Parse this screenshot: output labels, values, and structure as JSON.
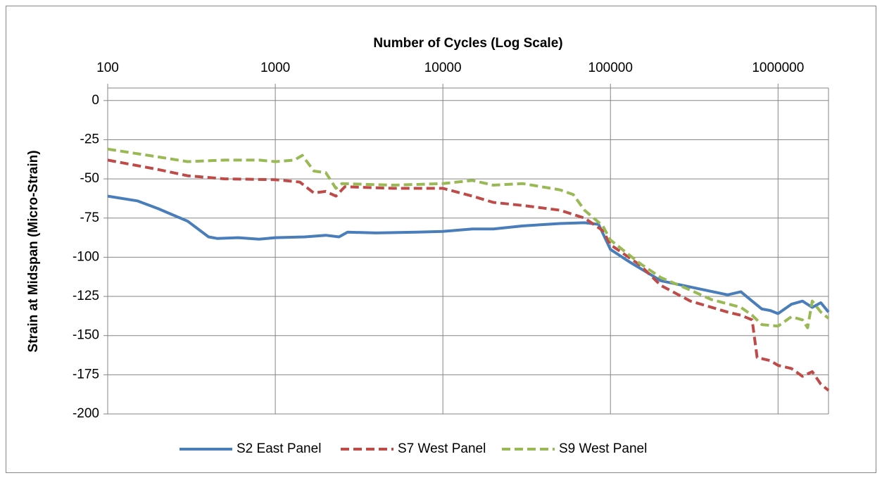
{
  "chart_data": {
    "type": "line",
    "x_label": "Number of Cycles (Log Scale)",
    "y_label": "Strain at Midspan (Micro-Strain)",
    "x_log": true,
    "xlim": [
      100,
      2000000
    ],
    "xticks": [
      100,
      1000,
      10000,
      100000,
      1000000
    ],
    "ylim": [
      -200,
      8
    ],
    "yticks": [
      0,
      -25,
      -50,
      -75,
      -100,
      -125,
      -150,
      -175,
      -200
    ],
    "grid": true,
    "legend": "bottom",
    "series": [
      {
        "name": "S2 East Panel",
        "color": "#4a7ebb",
        "dash": false,
        "x": [
          100,
          150,
          200,
          300,
          400,
          450,
          600,
          800,
          1000,
          1500,
          2000,
          2400,
          2700,
          4000,
          7000,
          10000,
          15000,
          20000,
          30000,
          50000,
          70000,
          85000,
          100000,
          130000,
          200000,
          300000,
          500000,
          600000,
          700000,
          800000,
          900000,
          1000000,
          1200000,
          1400000,
          1600000,
          1800000,
          2000000
        ],
        "values": [
          -61,
          -64,
          -69,
          -77,
          -87,
          -88,
          -87.5,
          -88.5,
          -87.5,
          -87,
          -86,
          -87,
          -84,
          -84.5,
          -84,
          -83.5,
          -82,
          -82,
          -80,
          -78.5,
          -78,
          -79,
          -95,
          -103,
          -115,
          -119,
          -124,
          -122,
          -128,
          -133,
          -134,
          -136,
          -130,
          -128,
          -132,
          -129,
          -135
        ]
      },
      {
        "name": "S7 West Panel",
        "color": "#be4b48",
        "dash": true,
        "x": [
          100,
          200,
          300,
          500,
          1000,
          1400,
          1700,
          2000,
          2300,
          2600,
          5000,
          10000,
          15000,
          20000,
          30000,
          50000,
          70000,
          90000,
          100000,
          150000,
          200000,
          300000,
          500000,
          600000,
          700000,
          750000,
          900000,
          1000000,
          1200000,
          1400000,
          1600000,
          1800000,
          2000000
        ],
        "values": [
          -38,
          -44,
          -48,
          -50,
          -50.5,
          -52,
          -59,
          -58,
          -61,
          -55,
          -56,
          -56,
          -61,
          -65,
          -67,
          -70,
          -75,
          -83,
          -92,
          -105,
          -118,
          -128,
          -135,
          -137,
          -140,
          -164,
          -166,
          -169,
          -171,
          -176,
          -173,
          -181,
          -185
        ]
      },
      {
        "name": "S9 West Panel",
        "color": "#98b954",
        "dash": true,
        "x": [
          100,
          200,
          300,
          500,
          800,
          1000,
          1300,
          1450,
          1700,
          2000,
          2300,
          2500,
          5000,
          10000,
          15000,
          20000,
          30000,
          50000,
          60000,
          70000,
          90000,
          100000,
          150000,
          200000,
          300000,
          400000,
          600000,
          700000,
          800000,
          1000000,
          1200000,
          1400000,
          1500000,
          1600000,
          1800000,
          2000000
        ],
        "values": [
          -31,
          -36,
          -39,
          -38,
          -38,
          -39,
          -38,
          -35,
          -45,
          -46,
          -56,
          -53,
          -54,
          -53,
          -51,
          -54,
          -53,
          -57,
          -60,
          -70,
          -80,
          -89,
          -104,
          -113,
          -121,
          -127,
          -132,
          -137,
          -143,
          -144,
          -138,
          -140,
          -145,
          -128,
          -135,
          -139
        ]
      }
    ]
  }
}
